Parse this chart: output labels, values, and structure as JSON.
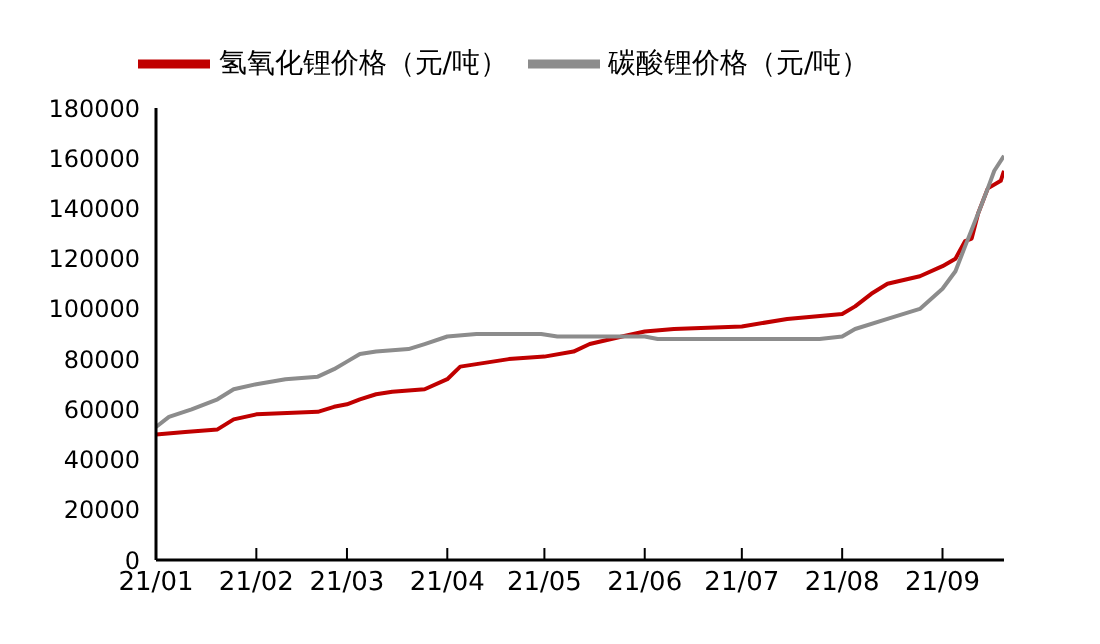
{
  "chart_data": {
    "type": "line",
    "legend": "top",
    "grid": false,
    "marker": "none",
    "line_style": "solid",
    "xlim": [
      "--01-01",
      "--09-20"
    ],
    "xticks": [
      {
        "value": "--01-01",
        "label": "21/01"
      },
      {
        "value": "--02-01",
        "label": "21/02"
      },
      {
        "value": "--03-01",
        "label": "21/03"
      },
      {
        "value": "--04-01",
        "label": "21/04"
      },
      {
        "value": "--05-01",
        "label": "21/05"
      },
      {
        "value": "--06-01",
        "label": "21/06"
      },
      {
        "value": "--07-01",
        "label": "21/07"
      },
      {
        "value": "--08-01",
        "label": "21/08"
      },
      {
        "value": "--09-01",
        "label": "21/09"
      }
    ],
    "ylim": [
      0,
      180000
    ],
    "yticks": [
      0,
      20000,
      40000,
      60000,
      80000,
      100000,
      120000,
      140000,
      160000,
      180000
    ],
    "series": [
      {
        "name": "氢氧化锂价格（元/吨）",
        "color": "#c00000",
        "x": [
          "--01-01",
          "--01-10",
          "--01-20",
          "--01-25",
          "--02-01",
          "--02-20",
          "--02-25",
          "--03-01",
          "--03-05",
          "--03-10",
          "--03-15",
          "--03-25",
          "--04-01",
          "--04-05",
          "--04-10",
          "--04-20",
          "--05-01",
          "--05-10",
          "--05-15",
          "--05-25",
          "--06-01",
          "--06-10",
          "--07-01",
          "--07-15",
          "--08-01",
          "--08-05",
          "--08-10",
          "--08-15",
          "--08-25",
          "--09-01",
          "--09-05",
          "--09-08",
          "--09-10",
          "--09-12",
          "--09-15",
          "--09-19",
          "--09-20"
        ],
        "values": [
          50000,
          51000,
          52000,
          56000,
          58000,
          59000,
          61000,
          62000,
          64000,
          66000,
          67000,
          68000,
          72000,
          77000,
          78000,
          80000,
          81000,
          83000,
          86000,
          89000,
          91000,
          92000,
          93000,
          96000,
          98000,
          101000,
          106000,
          110000,
          113000,
          117000,
          120000,
          127000,
          128000,
          138000,
          148000,
          151000,
          155000
        ]
      },
      {
        "name": "碳酸锂价格（元/吨）",
        "color": "#8c8c8c",
        "x": [
          "--01-01",
          "--01-05",
          "--01-12",
          "--01-20",
          "--01-25",
          "--02-01",
          "--02-10",
          "--02-20",
          "--02-25",
          "--03-01",
          "--03-05",
          "--03-10",
          "--03-20",
          "--03-25",
          "--04-01",
          "--04-10",
          "--04-30",
          "--05-05",
          "--06-01",
          "--06-05",
          "--07-25",
          "--08-01",
          "--08-05",
          "--08-15",
          "--08-25",
          "--09-01",
          "--09-05",
          "--09-08",
          "--09-12",
          "--09-15",
          "--09-17",
          "--09-20"
        ],
        "values": [
          53000,
          57000,
          60000,
          64000,
          68000,
          70000,
          72000,
          73000,
          76000,
          79000,
          82000,
          83000,
          84000,
          86000,
          89000,
          90000,
          90000,
          89000,
          89000,
          88000,
          88000,
          89000,
          92000,
          96000,
          100000,
          108000,
          115000,
          125000,
          138000,
          148000,
          155000,
          161000
        ]
      }
    ]
  }
}
